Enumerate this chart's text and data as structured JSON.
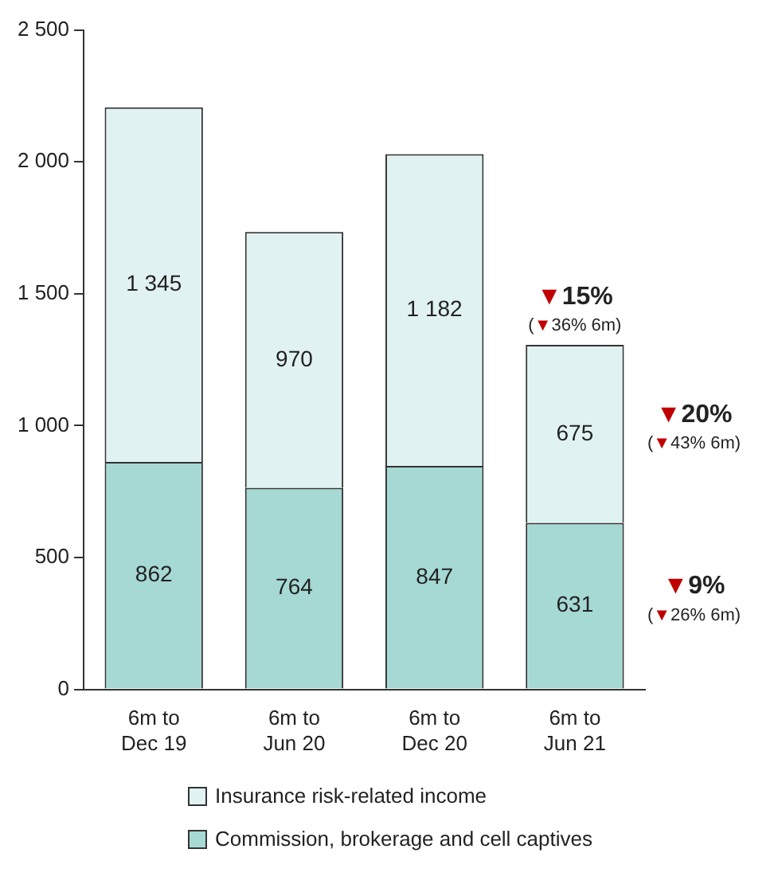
{
  "chart_data": {
    "type": "bar",
    "stacked": true,
    "categories": [
      "6m to\nDec 19",
      "6m to\nJun 20",
      "6m to\nDec 20",
      "6m to\nJun 21"
    ],
    "series": [
      {
        "name": "Commission, brokerage and cell captives",
        "color": "#a6d9d3",
        "values": [
          862,
          764,
          847,
          631
        ],
        "value_labels": [
          "862",
          "764",
          "847",
          "631"
        ]
      },
      {
        "name": "Insurance risk-related income",
        "color": "#e0f2f1",
        "values": [
          1345,
          970,
          1182,
          675
        ],
        "value_labels": [
          "1 345",
          "970",
          "1 182",
          "675"
        ]
      }
    ],
    "ylim": [
      0,
      2500
    ],
    "yticks": [
      0,
      {
        "value": 500,
        "label": "500"
      },
      {
        "value": 1000,
        "label": "1 000"
      },
      {
        "value": 1500,
        "label": "1 500"
      },
      {
        "value": 2000,
        "label": "2 000"
      },
      {
        "value": 2500,
        "label": "2 500"
      }
    ],
    "grid": false,
    "legend": "bottom",
    "annotations": [
      "▼15%",
      "(▼36% 6m)",
      "▼20%",
      "(▼43% 6m)",
      "▼9%",
      "(▼26% 6m)"
    ]
  }
}
